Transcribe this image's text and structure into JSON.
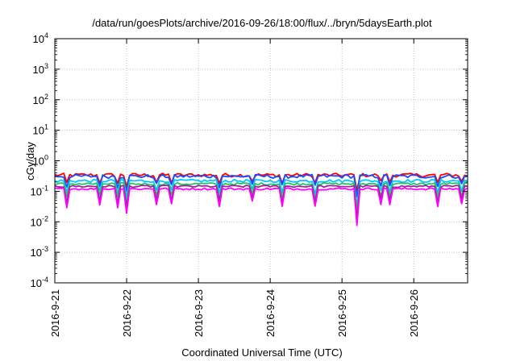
{
  "chart_data": {
    "type": "line",
    "title": "/data/run/goesPlots/archive/2016-09-26/18:00/flux/../bryn/5daysEarth.plot",
    "xlabel": "Coordinated Universal Time (UTC)",
    "ylabel": "cGy/day",
    "y_scale": "log",
    "ylim": [
      0.0001,
      10000
    ],
    "y_ticks": [
      {
        "value": 0.0001,
        "base": "10",
        "exp": "-4"
      },
      {
        "value": 0.001,
        "base": "10",
        "exp": "-3"
      },
      {
        "value": 0.01,
        "base": "10",
        "exp": "-2"
      },
      {
        "value": 0.1,
        "base": "10",
        "exp": "-1"
      },
      {
        "value": 1,
        "base": "10",
        "exp": "0"
      },
      {
        "value": 10,
        "base": "10",
        "exp": "1"
      },
      {
        "value": 100,
        "base": "10",
        "exp": "2"
      },
      {
        "value": 1000,
        "base": "10",
        "exp": "3"
      },
      {
        "value": 10000,
        "base": "10",
        "exp": "4"
      }
    ],
    "x_range": [
      "2016-09-21 00:00",
      "2016-09-26 18:00"
    ],
    "x_tick_labels": [
      "2016-9-21",
      "2016-9-22",
      "2016-9-23",
      "2016-9-24",
      "2016-9-25",
      "2016-9-26"
    ],
    "grid": true,
    "legend": "none",
    "series": [
      {
        "color": "#ff0000",
        "level": 0.34,
        "jitter": 0.14,
        "dip_depth": 0.28
      },
      {
        "color": "#1a4cff",
        "level": 0.31,
        "jitter": 0.14,
        "dip_depth": 0.3
      },
      {
        "color": "#00c8ff",
        "level": 0.22,
        "jitter": 0.11,
        "dip_depth": 0.3
      },
      {
        "color": "#22c55e",
        "level": 0.175,
        "jitter": 0.09,
        "dip_depth": 0.32
      },
      {
        "color": "#a020a0",
        "level": 0.145,
        "jitter": 0.08,
        "dip_depth": 0.34
      },
      {
        "color": "#ff00ff",
        "level": 0.12,
        "jitter": 0.08,
        "dip_depth": 0.45
      }
    ],
    "dips": [
      {
        "date": "2016-09-21 04:00",
        "factor": 0.55
      },
      {
        "date": "2016-09-21 15:00",
        "factor": 0.6
      },
      {
        "date": "2016-09-21 21:00",
        "factor": 0.55
      },
      {
        "date": "2016-09-22 00:00",
        "factor": 0.45
      },
      {
        "date": "2016-09-22 10:00",
        "factor": 0.6
      },
      {
        "date": "2016-09-22 15:00",
        "factor": 0.6
      },
      {
        "date": "2016-09-23 07:00",
        "factor": 0.55
      },
      {
        "date": "2016-09-23 18:00",
        "factor": 0.65
      },
      {
        "date": "2016-09-24 04:00",
        "factor": 0.55
      },
      {
        "date": "2016-09-24 15:00",
        "factor": 0.55
      },
      {
        "date": "2016-09-25 05:00",
        "factor": 0.3
      },
      {
        "date": "2016-09-25 13:00",
        "factor": 0.6
      },
      {
        "date": "2016-09-25 16:00",
        "factor": 0.6
      },
      {
        "date": "2016-09-26 08:00",
        "factor": 0.55
      },
      {
        "date": "2016-09-26 16:00",
        "factor": 0.6
      }
    ],
    "samples_per_day": 24
  }
}
